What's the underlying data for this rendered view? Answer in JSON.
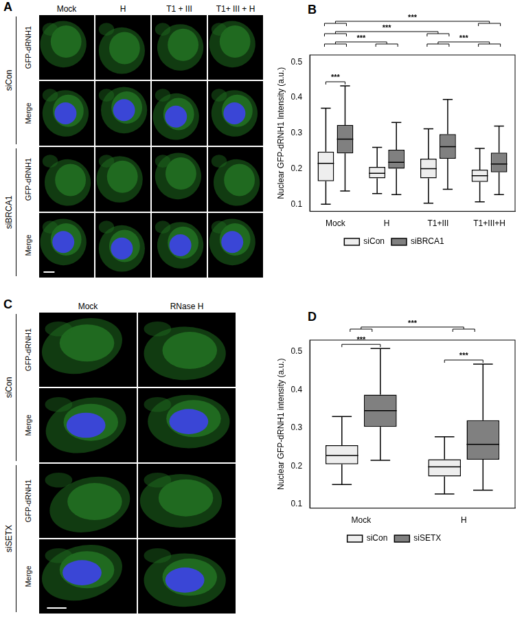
{
  "image_panels": [
    {
      "label": "A",
      "columns": [
        "Mock",
        "H",
        "T1 + III",
        "T1+ III + H"
      ],
      "row_groups": [
        {
          "name": "siCon",
          "rows": [
            "GFP-dRNH1",
            "Merge"
          ]
        },
        {
          "name": "siBRCA1",
          "rows": [
            "GFP-dRNH1",
            "Merge"
          ]
        }
      ]
    },
    {
      "label": "C",
      "columns": [
        "Mock",
        "RNase H"
      ],
      "row_groups": [
        {
          "name": "siCon",
          "rows": [
            "GFP-dRNH1",
            "Merge"
          ]
        },
        {
          "name": "siSETX",
          "rows": [
            "GFP-dRNH1",
            "Merge"
          ]
        }
      ]
    }
  ],
  "chart_data": [
    {
      "panel": "B",
      "type": "boxplot",
      "y_label": "Nuclear GFP-dRNH1 Intensity (a.u.)",
      "categories": [
        "Mock",
        "H",
        "T1+III",
        "T1+III+H"
      ],
      "series": [
        {
          "name": "siCon",
          "color": "#eeeeee",
          "values": [
            {
              "min": 0.1,
              "q1": 0.165,
              "median": 0.215,
              "q3": 0.248,
              "max": 0.37
            },
            {
              "min": 0.13,
              "q1": 0.173,
              "median": 0.187,
              "q3": 0.205,
              "max": 0.26
            },
            {
              "min": 0.103,
              "q1": 0.173,
              "median": 0.2,
              "q3": 0.228,
              "max": 0.312
            },
            {
              "min": 0.107,
              "q1": 0.163,
              "median": 0.18,
              "q3": 0.197,
              "max": 0.257
            }
          ]
        },
        {
          "name": "siBRCA1",
          "color": "#808080",
          "values": [
            {
              "min": 0.137,
              "q1": 0.243,
              "median": 0.283,
              "q3": 0.323,
              "max": 0.433
            },
            {
              "min": 0.127,
              "q1": 0.2,
              "median": 0.218,
              "q3": 0.253,
              "max": 0.33
            },
            {
              "min": 0.142,
              "q1": 0.228,
              "median": 0.262,
              "q3": 0.297,
              "max": 0.395
            },
            {
              "min": 0.127,
              "q1": 0.19,
              "median": 0.213,
              "q3": 0.245,
              "max": 0.32
            }
          ]
        }
      ],
      "ylim": [
        0.08,
        0.52
      ],
      "yticks": [
        0.1,
        0.2,
        0.3,
        0.4,
        0.5
      ],
      "grid": false,
      "legend": "bottom",
      "comparisons": [
        {
          "from": {
            "category": "Mock",
            "series": "siCon"
          },
          "to": {
            "category": "Mock",
            "series": "siBRCA1"
          },
          "label": "***"
        },
        {
          "from": {
            "category": "Mock"
          },
          "to": {
            "category": "H"
          },
          "label": "***"
        },
        {
          "from": {
            "category": "Mock"
          },
          "to": {
            "category": "T1+III"
          },
          "label": "***"
        },
        {
          "from": {
            "category": "Mock"
          },
          "to": {
            "category": "T1+III+H"
          },
          "label": "***"
        },
        {
          "from": {
            "category": "T1+III"
          },
          "to": {
            "category": "T1+III+H"
          },
          "label": "***"
        }
      ]
    },
    {
      "panel": "D",
      "type": "boxplot",
      "y_label": "Nuclear GFP-dRNH1 intensity (a.u.)",
      "categories": [
        "Mock",
        "H"
      ],
      "series": [
        {
          "name": "siCon",
          "color": "#eeeeee",
          "values": [
            {
              "min": 0.152,
              "q1": 0.205,
              "median": 0.228,
              "q3": 0.255,
              "max": 0.33
            },
            {
              "min": 0.127,
              "q1": 0.173,
              "median": 0.198,
              "q3": 0.218,
              "max": 0.277
            }
          ]
        },
        {
          "name": "siSETX",
          "color": "#808080",
          "values": [
            {
              "min": 0.215,
              "q1": 0.303,
              "median": 0.345,
              "q3": 0.387,
              "max": 0.508
            },
            {
              "min": 0.137,
              "q1": 0.217,
              "median": 0.257,
              "q3": 0.32,
              "max": 0.467
            }
          ]
        }
      ],
      "ylim": [
        0.09,
        0.53
      ],
      "yticks": [
        0.1,
        0.2,
        0.3,
        0.4,
        0.5
      ],
      "grid": false,
      "legend": "bottom",
      "comparisons": [
        {
          "from": {
            "category": "Mock",
            "series": "siCon"
          },
          "to": {
            "category": "Mock",
            "series": "siSETX"
          },
          "label": "***"
        },
        {
          "from": {
            "category": "H",
            "series": "siCon"
          },
          "to": {
            "category": "H",
            "series": "siSETX"
          },
          "label": "***"
        },
        {
          "from": {
            "category": "Mock"
          },
          "to": {
            "category": "H"
          },
          "label": "***"
        }
      ]
    }
  ]
}
